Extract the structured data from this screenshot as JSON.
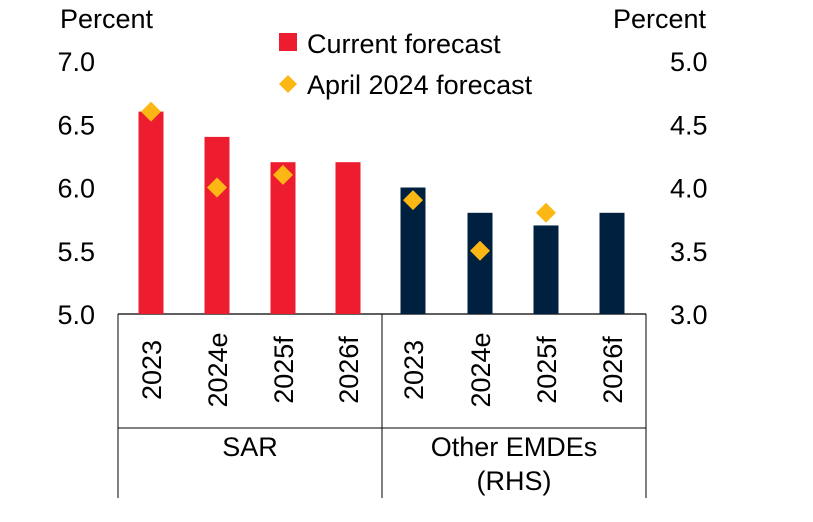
{
  "chart_data": {
    "type": "bar",
    "title": "",
    "left_axis": {
      "unit": "Percent",
      "ylim": [
        5.0,
        7.0
      ],
      "ticks": [
        "5.0",
        "5.5",
        "6.0",
        "6.5",
        "7.0"
      ]
    },
    "right_axis": {
      "unit": "Percent",
      "ylim": [
        3.0,
        5.0
      ],
      "ticks": [
        "3.0",
        "3.5",
        "4.0",
        "4.5",
        "5.0"
      ]
    },
    "groups": [
      {
        "label": "SAR",
        "axis": "left",
        "bar_color": "#ED1C2E",
        "categories": [
          "2023",
          "2024e",
          "2025f",
          "2026f"
        ],
        "current": [
          6.6,
          6.4,
          6.2,
          6.2
        ],
        "april": [
          6.6,
          6.0,
          6.1,
          null
        ]
      },
      {
        "label": "Other EMDEs\n(RHS)",
        "axis": "right",
        "bar_color": "#00203F",
        "categories": [
          "2023",
          "2024e",
          "2025f",
          "2026f"
        ],
        "current": [
          4.0,
          3.8,
          3.7,
          3.8
        ],
        "april": [
          3.9,
          3.5,
          3.8,
          null
        ]
      }
    ],
    "series": [
      {
        "name": "Current forecast",
        "marker": "square",
        "color": "#ED1C2E"
      },
      {
        "name": "April 2024 forecast",
        "marker": "diamond",
        "color": "#FDB714"
      }
    ],
    "legend_position": "top-center",
    "grid": false
  }
}
